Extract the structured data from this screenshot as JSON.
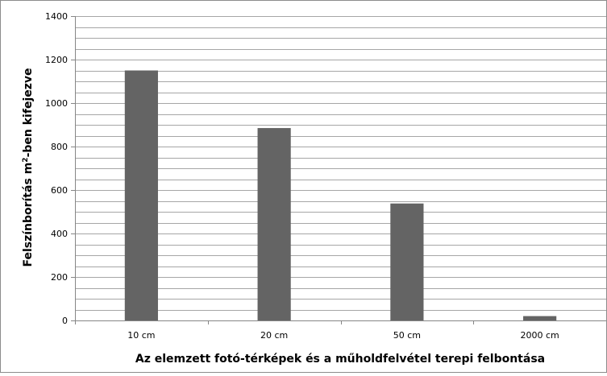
{
  "chart_data": {
    "type": "bar",
    "title": "",
    "xlabel": "Az elemzett fotó-térképek és a műholdfelvétel terepi felbontása",
    "ylabel_prefix": "Felszínborítás m",
    "ylabel_sup": "2",
    "ylabel_suffix": "-ben kifejezve",
    "categories": [
      "10 cm",
      "20 cm",
      "50 cm",
      "2000 cm"
    ],
    "values": [
      1150,
      885,
      538,
      20
    ],
    "ylim": [
      0,
      1400
    ],
    "yticks": [
      0,
      200,
      400,
      600,
      800,
      1000,
      1200,
      1400
    ],
    "minor_step": 50,
    "grid": true,
    "legend": "none",
    "bar_color": "#646464",
    "grid_color": "#a6a6a6"
  }
}
